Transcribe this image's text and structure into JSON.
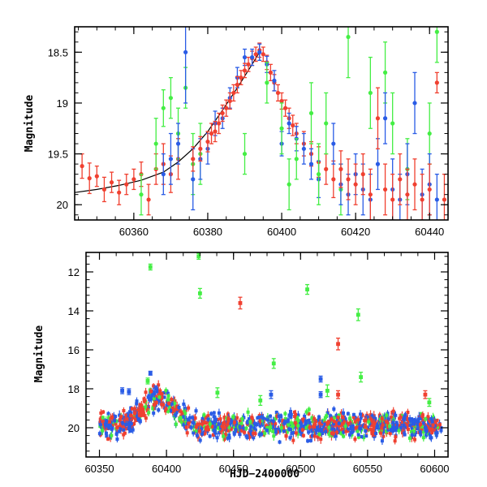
{
  "chart_data": [
    {
      "id": "top",
      "type": "scatter",
      "title": "",
      "xlabel": "",
      "ylabel": "Magnitude",
      "xlim": [
        60344,
        60445
      ],
      "ylim": [
        20.15,
        18.25
      ],
      "y_inverted": true,
      "x_ticks": [
        60360,
        60380,
        60400,
        60420,
        60440
      ],
      "y_ticks": [
        18.5,
        19,
        19.5,
        20
      ],
      "x_tick_labels": [
        "60360",
        "60380",
        "60400",
        "60420",
        "60440"
      ],
      "y_tick_labels": [
        "18.5",
        "19",
        "19.5",
        "20"
      ],
      "grid": false,
      "legend": "none",
      "series_colors": {
        "green": "#44ee44",
        "blue": "#2a5ce6",
        "red": "#f04030"
      },
      "fit_curve": {
        "color": "#000000",
        "x": [
          60344,
          60350,
          60356,
          60362,
          60368,
          60372,
          60376,
          60380,
          60384,
          60388,
          60392,
          60394
        ],
        "y": [
          19.88,
          19.85,
          19.81,
          19.76,
          19.68,
          19.58,
          19.45,
          19.28,
          19.07,
          18.85,
          18.62,
          18.5
        ]
      },
      "points": [
        {
          "x": 60346,
          "y": 19.62,
          "err": 0.12,
          "c": "red"
        },
        {
          "x": 60348,
          "y": 19.74,
          "err": 0.15,
          "c": "red"
        },
        {
          "x": 60350,
          "y": 19.72,
          "err": 0.1,
          "c": "red"
        },
        {
          "x": 60352,
          "y": 19.85,
          "err": 0.12,
          "c": "red"
        },
        {
          "x": 60354,
          "y": 19.78,
          "err": 0.1,
          "c": "red"
        },
        {
          "x": 60356,
          "y": 19.88,
          "err": 0.12,
          "c": "red"
        },
        {
          "x": 60358,
          "y": 19.8,
          "err": 0.1,
          "c": "red"
        },
        {
          "x": 60360,
          "y": 19.75,
          "err": 0.1,
          "c": "red"
        },
        {
          "x": 60362,
          "y": 19.7,
          "err": 0.12,
          "c": "red"
        },
        {
          "x": 60364,
          "y": 19.95,
          "err": 0.15,
          "c": "red"
        },
        {
          "x": 60366,
          "y": 19.65,
          "err": 0.15,
          "c": "red"
        },
        {
          "x": 60368,
          "y": 19.6,
          "err": 0.2,
          "c": "red"
        },
        {
          "x": 60370,
          "y": 19.7,
          "err": 0.18,
          "c": "red"
        },
        {
          "x": 60372,
          "y": 19.55,
          "err": 0.2,
          "c": "red"
        },
        {
          "x": 60362,
          "y": 19.9,
          "err": 0.2,
          "c": "green"
        },
        {
          "x": 60366,
          "y": 19.4,
          "err": 0.25,
          "c": "green"
        },
        {
          "x": 60368,
          "y": 19.05,
          "err": 0.18,
          "c": "green"
        },
        {
          "x": 60370,
          "y": 18.95,
          "err": 0.2,
          "c": "green"
        },
        {
          "x": 60372,
          "y": 19.3,
          "err": 0.25,
          "c": "green"
        },
        {
          "x": 60374,
          "y": 18.85,
          "err": 0.2,
          "c": "green"
        },
        {
          "x": 60376,
          "y": 19.6,
          "err": 0.3,
          "c": "green"
        },
        {
          "x": 60378,
          "y": 19.5,
          "err": 0.3,
          "c": "green"
        },
        {
          "x": 60368,
          "y": 19.7,
          "err": 0.2,
          "c": "blue"
        },
        {
          "x": 60370,
          "y": 19.55,
          "err": 0.25,
          "c": "blue"
        },
        {
          "x": 60372,
          "y": 19.4,
          "err": 0.2,
          "c": "blue"
        },
        {
          "x": 60374,
          "y": 18.5,
          "err": 0.5,
          "c": "blue"
        },
        {
          "x": 60376,
          "y": 19.75,
          "err": 0.3,
          "c": "blue"
        },
        {
          "x": 60378,
          "y": 19.55,
          "err": 0.2,
          "c": "blue"
        },
        {
          "x": 60380,
          "y": 19.45,
          "err": 0.15,
          "c": "blue"
        },
        {
          "x": 60382,
          "y": 19.2,
          "err": 0.12,
          "c": "blue"
        },
        {
          "x": 60384,
          "y": 19.15,
          "err": 0.1,
          "c": "blue"
        },
        {
          "x": 60386,
          "y": 18.95,
          "err": 0.1,
          "c": "blue"
        },
        {
          "x": 60388,
          "y": 18.75,
          "err": 0.1,
          "c": "blue"
        },
        {
          "x": 60390,
          "y": 18.55,
          "err": 0.08,
          "c": "blue"
        },
        {
          "x": 60376,
          "y": 19.55,
          "err": 0.12,
          "c": "red"
        },
        {
          "x": 60378,
          "y": 19.45,
          "err": 0.12,
          "c": "red"
        },
        {
          "x": 60380,
          "y": 19.38,
          "err": 0.1,
          "c": "red"
        },
        {
          "x": 60381,
          "y": 19.3,
          "err": 0.1,
          "c": "red"
        },
        {
          "x": 60382,
          "y": 19.28,
          "err": 0.1,
          "c": "red"
        },
        {
          "x": 60383,
          "y": 19.2,
          "err": 0.1,
          "c": "red"
        },
        {
          "x": 60384,
          "y": 19.1,
          "err": 0.08,
          "c": "red"
        },
        {
          "x": 60385,
          "y": 19.05,
          "err": 0.08,
          "c": "red"
        },
        {
          "x": 60386,
          "y": 18.98,
          "err": 0.08,
          "c": "red"
        },
        {
          "x": 60387,
          "y": 18.9,
          "err": 0.08,
          "c": "red"
        },
        {
          "x": 60388,
          "y": 18.82,
          "err": 0.08,
          "c": "red"
        },
        {
          "x": 60389,
          "y": 18.75,
          "err": 0.07,
          "c": "red"
        },
        {
          "x": 60390,
          "y": 18.68,
          "err": 0.07,
          "c": "red"
        },
        {
          "x": 60391,
          "y": 18.62,
          "err": 0.07,
          "c": "red"
        },
        {
          "x": 60392,
          "y": 18.56,
          "err": 0.07,
          "c": "red"
        },
        {
          "x": 60393,
          "y": 18.52,
          "err": 0.07,
          "c": "red"
        },
        {
          "x": 60394,
          "y": 18.48,
          "err": 0.07,
          "c": "red"
        },
        {
          "x": 60395,
          "y": 18.52,
          "err": 0.07,
          "c": "red"
        },
        {
          "x": 60396,
          "y": 18.6,
          "err": 0.07,
          "c": "red"
        },
        {
          "x": 60397,
          "y": 18.7,
          "err": 0.08,
          "c": "red"
        },
        {
          "x": 60398,
          "y": 18.8,
          "err": 0.08,
          "c": "red"
        },
        {
          "x": 60399,
          "y": 18.9,
          "err": 0.08,
          "c": "red"
        },
        {
          "x": 60400,
          "y": 18.98,
          "err": 0.08,
          "c": "red"
        },
        {
          "x": 60401,
          "y": 19.05,
          "err": 0.08,
          "c": "red"
        },
        {
          "x": 60402,
          "y": 19.15,
          "err": 0.1,
          "c": "red"
        },
        {
          "x": 60403,
          "y": 19.22,
          "err": 0.1,
          "c": "red"
        },
        {
          "x": 60404,
          "y": 19.3,
          "err": 0.1,
          "c": "red"
        },
        {
          "x": 60406,
          "y": 19.4,
          "err": 0.12,
          "c": "red"
        },
        {
          "x": 60408,
          "y": 19.5,
          "err": 0.12,
          "c": "red"
        },
        {
          "x": 60410,
          "y": 19.58,
          "err": 0.15,
          "c": "red"
        },
        {
          "x": 60412,
          "y": 19.65,
          "err": 0.15,
          "c": "red"
        },
        {
          "x": 60414,
          "y": 19.75,
          "err": 0.18,
          "c": "red"
        },
        {
          "x": 60392,
          "y": 18.55,
          "err": 0.08,
          "c": "blue"
        },
        {
          "x": 60394,
          "y": 18.5,
          "err": 0.08,
          "c": "blue"
        },
        {
          "x": 60396,
          "y": 18.62,
          "err": 0.08,
          "c": "blue"
        },
        {
          "x": 60398,
          "y": 18.78,
          "err": 0.1,
          "c": "blue"
        },
        {
          "x": 60400,
          "y": 19.4,
          "err": 0.12,
          "c": "blue"
        },
        {
          "x": 60402,
          "y": 19.2,
          "err": 0.1,
          "c": "blue"
        },
        {
          "x": 60404,
          "y": 19.35,
          "err": 0.12,
          "c": "blue"
        },
        {
          "x": 60406,
          "y": 19.45,
          "err": 0.15,
          "c": "blue"
        },
        {
          "x": 60408,
          "y": 19.6,
          "err": 0.15,
          "c": "blue"
        },
        {
          "x": 60410,
          "y": 19.75,
          "err": 0.18,
          "c": "blue"
        },
        {
          "x": 60390,
          "y": 19.5,
          "err": 0.2,
          "c": "green"
        },
        {
          "x": 60396,
          "y": 18.8,
          "err": 0.2,
          "c": "green"
        },
        {
          "x": 60400,
          "y": 19.25,
          "err": 0.25,
          "c": "green"
        },
        {
          "x": 60402,
          "y": 19.8,
          "err": 0.25,
          "c": "green"
        },
        {
          "x": 60404,
          "y": 19.55,
          "err": 0.2,
          "c": "green"
        },
        {
          "x": 60408,
          "y": 19.1,
          "err": 0.3,
          "c": "green"
        },
        {
          "x": 60410,
          "y": 19.7,
          "err": 0.3,
          "c": "green"
        },
        {
          "x": 60412,
          "y": 19.2,
          "err": 0.3,
          "c": "green"
        },
        {
          "x": 60416,
          "y": 19.85,
          "err": 0.25,
          "c": "green"
        },
        {
          "x": 60418,
          "y": 18.35,
          "err": 0.4,
          "c": "green"
        },
        {
          "x": 60424,
          "y": 18.9,
          "err": 0.35,
          "c": "green"
        },
        {
          "x": 60428,
          "y": 18.7,
          "err": 0.3,
          "c": "green"
        },
        {
          "x": 60430,
          "y": 19.2,
          "err": 0.3,
          "c": "green"
        },
        {
          "x": 60434,
          "y": 19.65,
          "err": 0.3,
          "c": "green"
        },
        {
          "x": 60440,
          "y": 19.3,
          "err": 0.3,
          "c": "green"
        },
        {
          "x": 60442,
          "y": 18.3,
          "err": 0.3,
          "c": "green"
        },
        {
          "x": 60414,
          "y": 19.4,
          "err": 0.2,
          "c": "blue"
        },
        {
          "x": 60416,
          "y": 19.8,
          "err": 0.2,
          "c": "blue"
        },
        {
          "x": 60418,
          "y": 19.9,
          "err": 0.2,
          "c": "blue"
        },
        {
          "x": 60420,
          "y": 19.7,
          "err": 0.2,
          "c": "blue"
        },
        {
          "x": 60422,
          "y": 19.85,
          "err": 0.25,
          "c": "blue"
        },
        {
          "x": 60424,
          "y": 19.95,
          "err": 0.25,
          "c": "blue"
        },
        {
          "x": 60426,
          "y": 19.6,
          "err": 0.25,
          "c": "blue"
        },
        {
          "x": 60428,
          "y": 19.15,
          "err": 0.25,
          "c": "blue"
        },
        {
          "x": 60430,
          "y": 19.85,
          "err": 0.3,
          "c": "blue"
        },
        {
          "x": 60432,
          "y": 19.95,
          "err": 0.25,
          "c": "blue"
        },
        {
          "x": 60434,
          "y": 19.7,
          "err": 0.3,
          "c": "blue"
        },
        {
          "x": 60436,
          "y": 19.0,
          "err": 0.3,
          "c": "blue"
        },
        {
          "x": 60438,
          "y": 19.9,
          "err": 0.25,
          "c": "blue"
        },
        {
          "x": 60440,
          "y": 19.8,
          "err": 0.3,
          "c": "blue"
        },
        {
          "x": 60442,
          "y": 19.95,
          "err": 0.25,
          "c": "blue"
        },
        {
          "x": 60416,
          "y": 19.65,
          "err": 0.18,
          "c": "red"
        },
        {
          "x": 60418,
          "y": 19.75,
          "err": 0.2,
          "c": "red"
        },
        {
          "x": 60420,
          "y": 19.8,
          "err": 0.2,
          "c": "red"
        },
        {
          "x": 60422,
          "y": 19.7,
          "err": 0.2,
          "c": "red"
        },
        {
          "x": 60424,
          "y": 19.9,
          "err": 0.25,
          "c": "red"
        },
        {
          "x": 60426,
          "y": 19.15,
          "err": 0.3,
          "c": "red"
        },
        {
          "x": 60428,
          "y": 19.85,
          "err": 0.25,
          "c": "red"
        },
        {
          "x": 60430,
          "y": 19.95,
          "err": 0.25,
          "c": "red"
        },
        {
          "x": 60432,
          "y": 19.75,
          "err": 0.25,
          "c": "red"
        },
        {
          "x": 60434,
          "y": 19.9,
          "err": 0.25,
          "c": "red"
        },
        {
          "x": 60436,
          "y": 19.8,
          "err": 0.25,
          "c": "red"
        },
        {
          "x": 60438,
          "y": 19.95,
          "err": 0.25,
          "c": "red"
        },
        {
          "x": 60440,
          "y": 19.85,
          "err": 0.25,
          "c": "red"
        },
        {
          "x": 60442,
          "y": 18.8,
          "err": 0.1,
          "c": "red"
        },
        {
          "x": 60444,
          "y": 19.95,
          "err": 0.25,
          "c": "red"
        }
      ]
    },
    {
      "id": "bottom",
      "type": "scatter",
      "title": "",
      "xlabel": "HJD−2400000",
      "ylabel": "Magnitude",
      "xlim": [
        60340,
        60610
      ],
      "ylim": [
        21.5,
        11
      ],
      "y_inverted": true,
      "x_ticks": [
        60350,
        60400,
        60450,
        60500,
        60550,
        60600
      ],
      "y_ticks": [
        12,
        14,
        16,
        18,
        20
      ],
      "x_tick_labels": [
        "60350",
        "60400",
        "60450",
        "60500",
        "60550",
        "60600"
      ],
      "y_tick_labels": [
        "12",
        "14",
        "16",
        "18",
        "20"
      ],
      "grid": false,
      "legend": "none",
      "series_colors": {
        "green": "#44ee44",
        "blue": "#2a5ce6",
        "red": "#f04030"
      },
      "band": {
        "x_start": 60350,
        "x_end": 60605,
        "y_center": 19.9,
        "y_spread": 0.4,
        "peak_x": 60394,
        "peak_y": 18.5,
        "peak_width": 12
      },
      "points": [
        {
          "x": 60388,
          "y": 11.75,
          "err": 0.15,
          "c": "green"
        },
        {
          "x": 60424,
          "y": 11.2,
          "err": 0.15,
          "c": "green"
        },
        {
          "x": 60425,
          "y": 13.1,
          "err": 0.25,
          "c": "green"
        },
        {
          "x": 60505,
          "y": 12.9,
          "err": 0.25,
          "c": "green"
        },
        {
          "x": 60543,
          "y": 14.2,
          "err": 0.3,
          "c": "green"
        },
        {
          "x": 60480,
          "y": 16.7,
          "err": 0.25,
          "c": "green"
        },
        {
          "x": 60545,
          "y": 17.4,
          "err": 0.25,
          "c": "green"
        },
        {
          "x": 60520,
          "y": 18.1,
          "err": 0.3,
          "c": "green"
        },
        {
          "x": 60455,
          "y": 13.6,
          "err": 0.3,
          "c": "red"
        },
        {
          "x": 60528,
          "y": 15.7,
          "err": 0.3,
          "c": "red"
        },
        {
          "x": 60528,
          "y": 18.3,
          "err": 0.2,
          "c": "red"
        },
        {
          "x": 60593,
          "y": 18.3,
          "err": 0.2,
          "c": "red"
        },
        {
          "x": 60388,
          "y": 17.2,
          "err": 0.1,
          "c": "blue"
        },
        {
          "x": 60367,
          "y": 18.1,
          "err": 0.15,
          "c": "blue"
        },
        {
          "x": 60372,
          "y": 18.15,
          "err": 0.15,
          "c": "blue"
        },
        {
          "x": 60392,
          "y": 18.0,
          "err": 0.15,
          "c": "blue"
        },
        {
          "x": 60386,
          "y": 17.6,
          "err": 0.15,
          "c": "green"
        },
        {
          "x": 60515,
          "y": 17.5,
          "err": 0.15,
          "c": "blue"
        },
        {
          "x": 60515,
          "y": 18.3,
          "err": 0.15,
          "c": "blue"
        },
        {
          "x": 60478,
          "y": 18.3,
          "err": 0.2,
          "c": "blue"
        },
        {
          "x": 60438,
          "y": 18.2,
          "err": 0.25,
          "c": "green"
        },
        {
          "x": 60596,
          "y": 18.7,
          "err": 0.2,
          "c": "green"
        },
        {
          "x": 60470,
          "y": 18.6,
          "err": 0.25,
          "c": "green"
        }
      ]
    }
  ]
}
